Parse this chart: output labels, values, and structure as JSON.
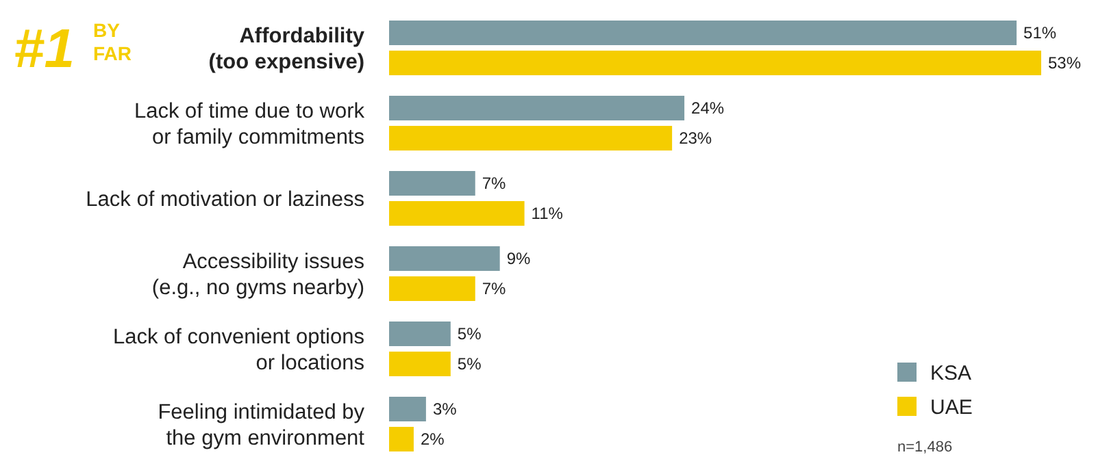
{
  "chart_data": {
    "type": "bar",
    "orientation": "horizontal",
    "categories": [
      "Affordability\n(too expensive)",
      "Lack of time due to work\nor family commitments",
      "Lack of motivation or laziness",
      "Accessibility issues\n(e.g., no gyms nearby)",
      "Lack of convenient options\nor locations",
      "Feeling intimidated by\nthe gym environment"
    ],
    "series": [
      {
        "name": "KSA",
        "color": "#7c9ba3",
        "values": [
          51,
          24,
          7,
          9,
          5,
          3
        ],
        "value_labels": [
          "51%",
          "24%",
          "7%",
          "9%",
          "5%",
          "3%"
        ]
      },
      {
        "name": "UAE",
        "color": "#f5cd00",
        "values": [
          53,
          23,
          11,
          7,
          5,
          2
        ],
        "value_labels": [
          "53%",
          "23%",
          "11%",
          "7%",
          "5%",
          "2%"
        ]
      }
    ],
    "legend": "bottom right",
    "annotations": [
      "#1",
      "BY FAR",
      "n=1,486"
    ]
  }
}
